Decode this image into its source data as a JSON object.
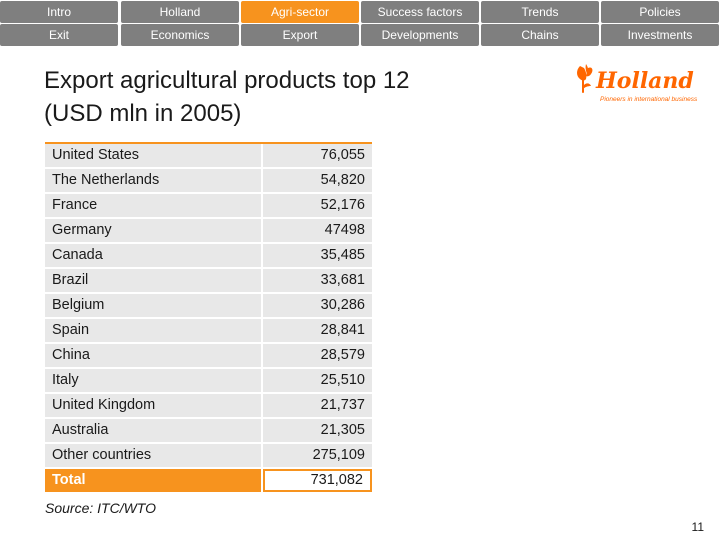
{
  "nav": {
    "row1": [
      {
        "label": "Intro",
        "active": false
      },
      {
        "label": "Holland",
        "active": false
      },
      {
        "label": "Agri-sector",
        "active": true
      },
      {
        "label": "Success factors",
        "active": false
      },
      {
        "label": "Trends",
        "active": false
      },
      {
        "label": "Policies",
        "active": false
      }
    ],
    "row2": [
      {
        "label": "Exit",
        "active": false
      },
      {
        "label": "Economics",
        "active": false
      },
      {
        "label": "Export",
        "active": false
      },
      {
        "label": "Developments",
        "active": false
      },
      {
        "label": "Chains",
        "active": false
      },
      {
        "label": "Investments",
        "active": false
      }
    ]
  },
  "slide": {
    "title_line1": "Export agricultural products top 12",
    "title_line2": "(USD mln in 2005)"
  },
  "logo": {
    "wordmark": "Holland",
    "tagline": "Pioneers in international business",
    "color": "#ff6600"
  },
  "table": {
    "rows": [
      {
        "country": "United States",
        "value": "76,055"
      },
      {
        "country": "The Netherlands",
        "value": "54,820"
      },
      {
        "country": "France",
        "value": "52,176"
      },
      {
        "country": "Germany",
        "value": "47498"
      },
      {
        "country": "Canada",
        "value": "35,485"
      },
      {
        "country": "Brazil",
        "value": "33,681"
      },
      {
        "country": "Belgium",
        "value": "30,286"
      },
      {
        "country": "Spain",
        "value": "28,841"
      },
      {
        "country": "China",
        "value": "28,579"
      },
      {
        "country": "Italy",
        "value": "25,510"
      },
      {
        "country": "United Kingdom",
        "value": "21,737"
      },
      {
        "country": "Australia",
        "value": "21,305"
      },
      {
        "country": "Other countries",
        "value": "275,109"
      }
    ],
    "total": {
      "country": "Total",
      "value": "731,082"
    }
  },
  "footer": {
    "source": "Source: ITC/WTO",
    "page_number": "11"
  },
  "colors": {
    "accent": "#f7931e",
    "nav_gray": "#7f7f7f",
    "row_gray": "#e8e8e8"
  }
}
